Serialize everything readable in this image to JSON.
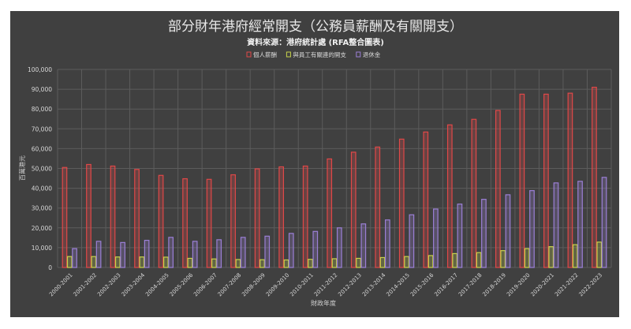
{
  "chart_data": {
    "type": "bar",
    "title": "部分財年港府經常開支（公務員薪酬及有關開支）",
    "subtitle": "資料來源：港府統計處 (RFA整合圖表)",
    "xlabel": "財政年度",
    "ylabel": "百萬港元",
    "ylim": [
      0,
      100000
    ],
    "yticks": [
      0,
      10000,
      20000,
      30000,
      40000,
      50000,
      60000,
      70000,
      80000,
      90000,
      100000
    ],
    "ytick_labels": [
      "0",
      "10,000",
      "20,000",
      "30,000",
      "40,000",
      "50,000",
      "60,000",
      "70,000",
      "80,000",
      "90,000",
      "100,000"
    ],
    "grid": true,
    "legend_position": "top",
    "categories": [
      "2000-2001",
      "2001-2002",
      "2002-2003",
      "2003-2004",
      "2004-2005",
      "2005-2006",
      "2006-2007",
      "2007-2008",
      "2008-2009",
      "2009-2010",
      "2010-2011",
      "2011-2012",
      "2012-2013",
      "2013-2014",
      "2014-2015",
      "2015-2016",
      "2016-2017",
      "2017-2018",
      "2018-2019",
      "2019-2020",
      "2020-2021",
      "2021-2022",
      "2022-2023"
    ],
    "series": [
      {
        "name": "個人薪酬",
        "color": "#e04848",
        "values": [
          50500,
          52000,
          51200,
          49500,
          46500,
          44800,
          44500,
          46800,
          49800,
          50800,
          51200,
          54800,
          58200,
          60800,
          64800,
          68400,
          72000,
          74800,
          79300,
          87500,
          87500,
          88000,
          91000
        ]
      },
      {
        "name": "與員工有關連的開支",
        "color": "#c8d24a",
        "values": [
          5500,
          5500,
          5300,
          5300,
          5200,
          4600,
          4300,
          4000,
          3900,
          3800,
          4100,
          4400,
          4600,
          5000,
          5500,
          6000,
          7000,
          7500,
          8500,
          9500,
          10500,
          11500,
          12800
        ]
      },
      {
        "name": "退休金",
        "color": "#9b7fd6",
        "values": [
          9500,
          13200,
          12600,
          13700,
          15200,
          13200,
          14000,
          15200,
          15800,
          17200,
          18200,
          20000,
          22000,
          24000,
          26600,
          29500,
          32000,
          34400,
          36700,
          38800,
          42700,
          43500,
          45500
        ]
      }
    ]
  }
}
